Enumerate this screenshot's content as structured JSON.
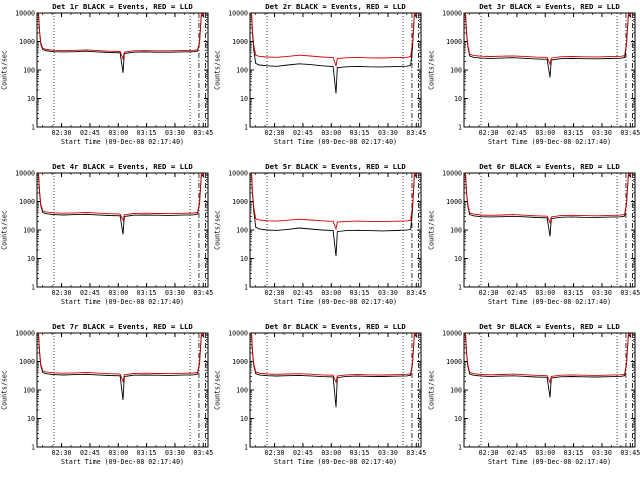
{
  "style": {
    "background": "#ffffff",
    "axis_color": "#000000",
    "events_color": "#000000",
    "lld_color": "#d40000"
  },
  "grid": {
    "rows": 3,
    "cols": 3
  },
  "axes": {
    "ylabel": "Counts/sec",
    "xlabel": "Start Time (09-Dec-08 02:17:40)",
    "ylim": [
      1,
      10000
    ],
    "yticks": [
      1,
      10,
      100,
      1000,
      10000
    ],
    "ytick_labels": [
      "1",
      "10",
      "100",
      "1000",
      "10000"
    ],
    "xlim": [
      137,
      227.5
    ],
    "xtick_values": [
      150,
      165,
      180,
      195,
      210,
      225
    ],
    "xtick_labels": [
      "02:30",
      "02:45",
      "03:00",
      "03:15",
      "03:30",
      "03:45"
    ],
    "xminor_step": 5,
    "vlines_dotted": [
      146,
      218
    ],
    "vlines_dashdot": [
      222.7,
      226.2
    ],
    "x_minutes": [
      137.8,
      138.3,
      139,
      140,
      142,
      146,
      151,
      157,
      163,
      169,
      175,
      181,
      182.5,
      183.2,
      188,
      194,
      200,
      207,
      214,
      220,
      222,
      223,
      224,
      225.5
    ]
  },
  "chart_data": [
    {
      "type": "line",
      "title": "Det 1r BLACK = Events, RED = LLD",
      "xlabel": "Start Time (09-Dec-08 02:17:40)",
      "ylabel": "Counts/sec",
      "ylim": [
        1,
        10000
      ],
      "series": [
        {
          "name": "Events",
          "color": "black",
          "values": [
            9000,
            2200,
            800,
            520,
            470,
            440,
            430,
            440,
            455,
            430,
            410,
            400,
            80,
            380,
            420,
            430,
            420,
            420,
            430,
            440,
            460,
            900,
            9000,
            7000
          ]
        },
        {
          "name": "LLD",
          "color": "red",
          "values": [
            9800,
            2500,
            900,
            580,
            525,
            492,
            480,
            492,
            508,
            480,
            458,
            447,
            250,
            425,
            470,
            480,
            470,
            470,
            480,
            492,
            515,
            1000,
            9800,
            8200
          ]
        }
      ]
    },
    {
      "type": "line",
      "title": "Det 2r BLACK = Events, RED = LLD",
      "xlabel": "Start Time (09-Dec-08 02:17:40)",
      "ylabel": "Counts/sec",
      "ylim": [
        1,
        10000
      ],
      "series": [
        {
          "name": "Events",
          "color": "black",
          "values": [
            9000,
            1800,
            500,
            170,
            150,
            140,
            135,
            150,
            165,
            155,
            140,
            132,
            15,
            120,
            130,
            134,
            130,
            128,
            132,
            136,
            145,
            600,
            9000,
            6500
          ]
        },
        {
          "name": "LLD",
          "color": "red",
          "values": [
            9500,
            2200,
            700,
            330,
            300,
            285,
            278,
            300,
            330,
            310,
            285,
            272,
            140,
            255,
            268,
            276,
            268,
            264,
            272,
            280,
            295,
            900,
            9500,
            8000
          ]
        }
      ]
    },
    {
      "type": "line",
      "title": "Det 3r BLACK = Events, RED = LLD",
      "xlabel": "Start Time (09-Dec-08 02:17:40)",
      "ylabel": "Counts/sec",
      "ylim": [
        1,
        10000
      ],
      "series": [
        {
          "name": "Events",
          "color": "black",
          "values": [
            9000,
            2000,
            650,
            310,
            280,
            262,
            256,
            262,
            270,
            258,
            245,
            238,
            55,
            225,
            250,
            256,
            250,
            248,
            254,
            260,
            275,
            800,
            9000,
            7000
          ]
        },
        {
          "name": "LLD",
          "color": "red",
          "values": [
            9500,
            2300,
            750,
            360,
            325,
            304,
            297,
            304,
            313,
            299,
            284,
            276,
            160,
            261,
            290,
            297,
            290,
            288,
            295,
            302,
            319,
            900,
            9500,
            8000
          ]
        }
      ]
    },
    {
      "type": "line",
      "title": "Det 4r BLACK = Events, RED = LLD",
      "xlabel": "Start Time (09-Dec-08 02:17:40)",
      "ylabel": "Counts/sec",
      "ylim": [
        1,
        10000
      ],
      "series": [
        {
          "name": "Events",
          "color": "black",
          "values": [
            9000,
            2100,
            700,
            410,
            370,
            346,
            337,
            346,
            356,
            340,
            323,
            314,
            70,
            297,
            330,
            337,
            330,
            326,
            334,
            342,
            363,
            850,
            9000,
            7000
          ]
        },
        {
          "name": "LLD",
          "color": "red",
          "values": [
            9500,
            2400,
            800,
            470,
            425,
            398,
            388,
            398,
            410,
            392,
            372,
            361,
            220,
            342,
            380,
            388,
            380,
            375,
            385,
            394,
            418,
            950,
            9500,
            8000
          ]
        }
      ]
    },
    {
      "type": "line",
      "title": "Det 5r BLACK = Events, RED = LLD",
      "xlabel": "Start Time (09-Dec-08 02:17:40)",
      "ylabel": "Counts/sec",
      "ylim": [
        1,
        10000
      ],
      "series": [
        {
          "name": "Events",
          "color": "black",
          "values": [
            9000,
            1700,
            450,
            125,
            108,
            100,
            97,
            105,
            118,
            108,
            100,
            96,
            12,
            88,
            95,
            98,
            95,
            93,
            96,
            99,
            106,
            500,
            9000,
            6500
          ]
        },
        {
          "name": "LLD",
          "color": "red",
          "values": [
            9500,
            2000,
            600,
            250,
            225,
            210,
            206,
            220,
            240,
            225,
            210,
            202,
            110,
            190,
            200,
            206,
            200,
            197,
            203,
            208,
            220,
            700,
            9500,
            8000
          ]
        }
      ]
    },
    {
      "type": "line",
      "title": "Det 6r BLACK = Events, RED = LLD",
      "xlabel": "Start Time (09-Dec-08 02:17:40)",
      "ylabel": "Counts/sec",
      "ylim": [
        1,
        10000
      ],
      "series": [
        {
          "name": "Events",
          "color": "black",
          "values": [
            9000,
            2000,
            680,
            350,
            315,
            294,
            288,
            294,
            302,
            290,
            275,
            267,
            60,
            252,
            280,
            288,
            280,
            277,
            284,
            291,
            308,
            820,
            9000,
            7000
          ]
        },
        {
          "name": "LLD",
          "color": "red",
          "values": [
            9500,
            2300,
            780,
            400,
            360,
            336,
            328,
            336,
            346,
            330,
            314,
            305,
            180,
            288,
            320,
            328,
            320,
            316,
            324,
            333,
            352,
            920,
            9500,
            8000
          ]
        }
      ]
    },
    {
      "type": "line",
      "title": "Det 7r BLACK = Events, RED = LLD",
      "xlabel": "Start Time (09-Dec-08 02:17:40)",
      "ylabel": "Counts/sec",
      "ylim": [
        1,
        10000
      ],
      "series": [
        {
          "name": "Events",
          "color": "black",
          "values": [
            9000,
            2100,
            700,
            410,
            370,
            346,
            337,
            346,
            356,
            340,
            323,
            314,
            45,
            297,
            330,
            337,
            330,
            326,
            334,
            342,
            363,
            850,
            9000,
            7000
          ]
        },
        {
          "name": "LLD",
          "color": "red",
          "values": [
            9500,
            2400,
            800,
            470,
            425,
            398,
            388,
            398,
            410,
            392,
            372,
            361,
            200,
            342,
            380,
            388,
            380,
            375,
            385,
            394,
            418,
            950,
            9500,
            8000
          ]
        }
      ]
    },
    {
      "type": "line",
      "title": "Det 8r BLACK = Events, RED = LLD",
      "xlabel": "Start Time (09-Dec-08 02:17:40)",
      "ylabel": "Counts/sec",
      "ylim": [
        1,
        10000
      ],
      "series": [
        {
          "name": "Events",
          "color": "black",
          "values": [
            9000,
            2050,
            690,
            375,
            340,
            318,
            310,
            318,
            326,
            312,
            296,
            288,
            25,
            272,
            300,
            308,
            300,
            297,
            304,
            312,
            330,
            830,
            9000,
            7000
          ]
        },
        {
          "name": "LLD",
          "color": "red",
          "values": [
            9500,
            2350,
            790,
            430,
            390,
            364,
            355,
            364,
            374,
            357,
            339,
            330,
            190,
            312,
            340,
            349,
            340,
            336,
            345,
            353,
            374,
            930,
            9500,
            8000
          ]
        }
      ]
    },
    {
      "type": "line",
      "title": "Det 9r BLACK = Events, RED = LLD",
      "xlabel": "Start Time (09-Dec-08 02:17:40)",
      "ylabel": "Counts/sec",
      "ylim": [
        1,
        10000
      ],
      "series": [
        {
          "name": "Events",
          "color": "black",
          "values": [
            9000,
            2000,
            680,
            365,
            330,
            308,
            300,
            308,
            316,
            302,
            287,
            279,
            55,
            264,
            290,
            298,
            290,
            287,
            294,
            301,
            318,
            820,
            9000,
            7000
          ]
        },
        {
          "name": "LLD",
          "color": "red",
          "values": [
            9500,
            2300,
            780,
            415,
            375,
            350,
            342,
            350,
            360,
            344,
            327,
            318,
            185,
            300,
            330,
            338,
            330,
            326,
            334,
            342,
            362,
            920,
            9500,
            8000
          ]
        }
      ]
    }
  ]
}
